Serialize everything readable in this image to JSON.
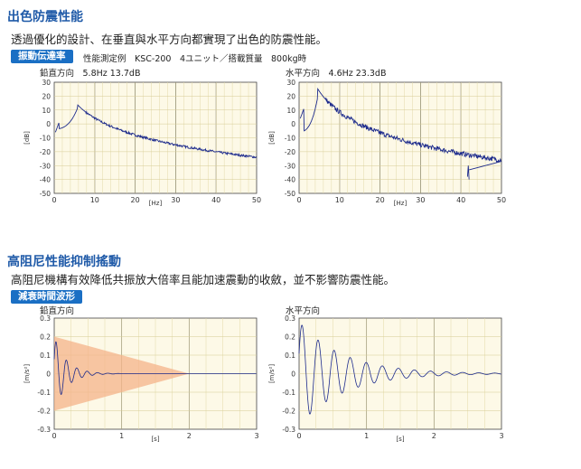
{
  "section1": {
    "title": "出色防震性能",
    "desc": "透過優化的設計、在垂直與水平方向都實現了出色的防震性能。",
    "tag": "振動伝達率",
    "tag_note": "性能測定例　KSC-200　4ユニット／搭載質量　800kg時"
  },
  "section2": {
    "title": "高阻尼性能抑制搖動",
    "desc": "高阻尼機構有效降低共振放大倍率且能加速震動的收斂，並不影響防震性能。",
    "tag": "減衰時間波形"
  },
  "colors": {
    "accent": "#1f5aa8",
    "tag_bg": "#1a6fc4",
    "plot_bg": "#fdf9e7",
    "trace": "#1c2a8c",
    "envelope": "#f4b38a"
  },
  "chart_data": [
    {
      "type": "line",
      "label": "鉛直方向　5.8Hz 13.7dB",
      "xlabel": "[Hz]",
      "ylabel": "[dB]",
      "xlim": [
        0,
        50
      ],
      "ylim": [
        -50,
        30
      ],
      "xticks": [
        "0",
        "10",
        "20",
        "30",
        "40",
        "50"
      ],
      "yticks": [
        "30",
        "20",
        "10",
        "0",
        "-10",
        "-20",
        "-30",
        "-40",
        "-50"
      ],
      "peak": {
        "x": 5.8,
        "y": 13.7
      },
      "grid": true
    },
    {
      "type": "line",
      "label": "水平方向　4.6Hz 23.3dB",
      "xlabel": "[Hz]",
      "ylabel": "[dB]",
      "xlim": [
        0,
        50
      ],
      "ylim": [
        -50,
        30
      ],
      "xticks": [
        "0",
        "10",
        "20",
        "30",
        "40",
        "50"
      ],
      "yticks": [
        "30",
        "20",
        "10",
        "0",
        "-10",
        "-20",
        "-30",
        "-40",
        "-50"
      ],
      "peak": {
        "x": 4.6,
        "y": 23.3
      },
      "grid": true
    },
    {
      "type": "line",
      "label": "鉛直方向",
      "xlabel": "[s]",
      "ylabel": "[m/s²]",
      "xlim": [
        0,
        3
      ],
      "ylim": [
        -0.3,
        0.3
      ],
      "xticks": [
        "0",
        "1",
        "2",
        "3"
      ],
      "yticks": [
        "0.3",
        "0.2",
        "0.1",
        "0",
        "-0.1",
        "-0.2",
        "-0.3"
      ],
      "envelope": {
        "start_amplitude": 0.2,
        "end_time": 2
      },
      "grid": true
    },
    {
      "type": "line",
      "label": "水平方向",
      "xlabel": "[s]",
      "ylabel": "[m/s²]",
      "xlim": [
        0,
        3
      ],
      "ylim": [
        -0.3,
        0.3
      ],
      "xticks": [
        "0",
        "1",
        "2",
        "3"
      ],
      "yticks": [
        "0.3",
        "0.2",
        "0.1",
        "0",
        "-0.1",
        "-0.2",
        "-0.3"
      ],
      "grid": true
    }
  ]
}
